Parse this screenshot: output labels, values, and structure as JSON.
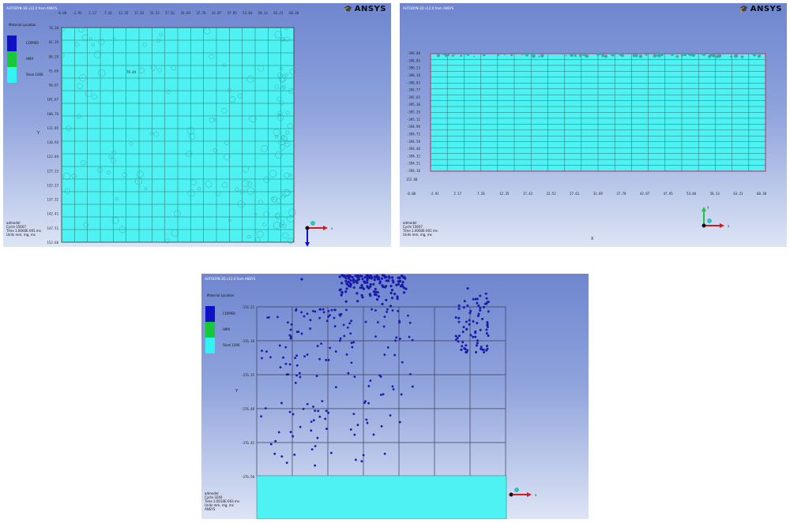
{
  "panels": [
    {
      "header": "AUTODYN-3D v12.0 from ANSYS",
      "brand": "ANSYS",
      "legend": {
        "title": "Material Location",
        "items": [
          {
            "label": "COPPER",
            "color": "#1010c8"
          },
          {
            "label": "HMX",
            "color": "#16c83a"
          },
          {
            "label": "Steel 1006",
            "color": "#33f2f2"
          }
        ]
      },
      "axis_label": "Y",
      "xticks": [
        "-0.00",
        "-2.91",
        "2.17",
        "7.26",
        "12.35",
        "17.43",
        "22.52",
        "27.61",
        "32.69",
        "37.78",
        "42.87",
        "47.95",
        "53.04",
        "58.13",
        "63.21",
        "68.30"
      ],
      "yticks": [
        "76.28",
        "81.29",
        "86.29",
        "91.68",
        "96.67",
        "101.67",
        "106.76",
        "111.85",
        "116.93",
        "122.04",
        "127.13",
        "132.23",
        "137.32",
        "142.41",
        "147.51",
        "152.60"
      ],
      "inner_label": "79.44",
      "footer": [
        "admodel",
        "Cycle 15607",
        "Time 1.0000E-001 ms",
        "Units mm, mg, ms"
      ],
      "triad": {
        "x": "x",
        "y": "y",
        "z": "z"
      }
    },
    {
      "header": "AUTODYN-3D v12.0 from ANSYS",
      "brand": "ANSYS",
      "yticks": [
        "-396.88",
        "-396.85",
        "-396.23",
        "-396.10",
        "-396.03",
        "-395.77",
        "-395.65",
        "-395.36",
        "-395.26",
        "-395.11",
        "-394.98",
        "-394.72",
        "-394.58",
        "-394.46",
        "-394.32",
        "-394.21",
        "-394.16"
      ],
      "xticks": [
        "-0.00",
        "-2.91",
        "2.17",
        "7.26",
        "12.35",
        "17.43",
        "22.52",
        "27.61",
        "32.69",
        "37.78",
        "42.87",
        "47.95",
        "53.04",
        "58.13",
        "63.21",
        "68.30"
      ],
      "extra_label": "152.60",
      "axis_label": "X",
      "footer": [
        "admodel",
        "Cycle 15607",
        "Time 1.0000E-001 ms",
        "Units mm, mg, ms"
      ],
      "triad": {
        "x": "x",
        "y": "y",
        "z": "z"
      }
    },
    {
      "header": "AUTODYN-3D v12.0 from ANSYS",
      "legend": {
        "title": "Material Location",
        "items": [
          {
            "label": "COPPER",
            "color": "#1010c8"
          },
          {
            "label": "HMX",
            "color": "#16c83a"
          },
          {
            "label": "Steel 1006",
            "color": "#33f2f2"
          }
        ]
      },
      "axis_label": "Y",
      "yticks": [
        "-376.25",
        "-376.30",
        "-376.35",
        "-376.40",
        "-376.45",
        "-376.50"
      ],
      "footer": [
        "admodel",
        "Cycle 3240",
        "Time 3.0010E-003 ms",
        "Units mm, mg, ms"
      ],
      "footer_extra": "ANSYS",
      "triad": {
        "x": "x",
        "z": "z"
      }
    }
  ]
}
